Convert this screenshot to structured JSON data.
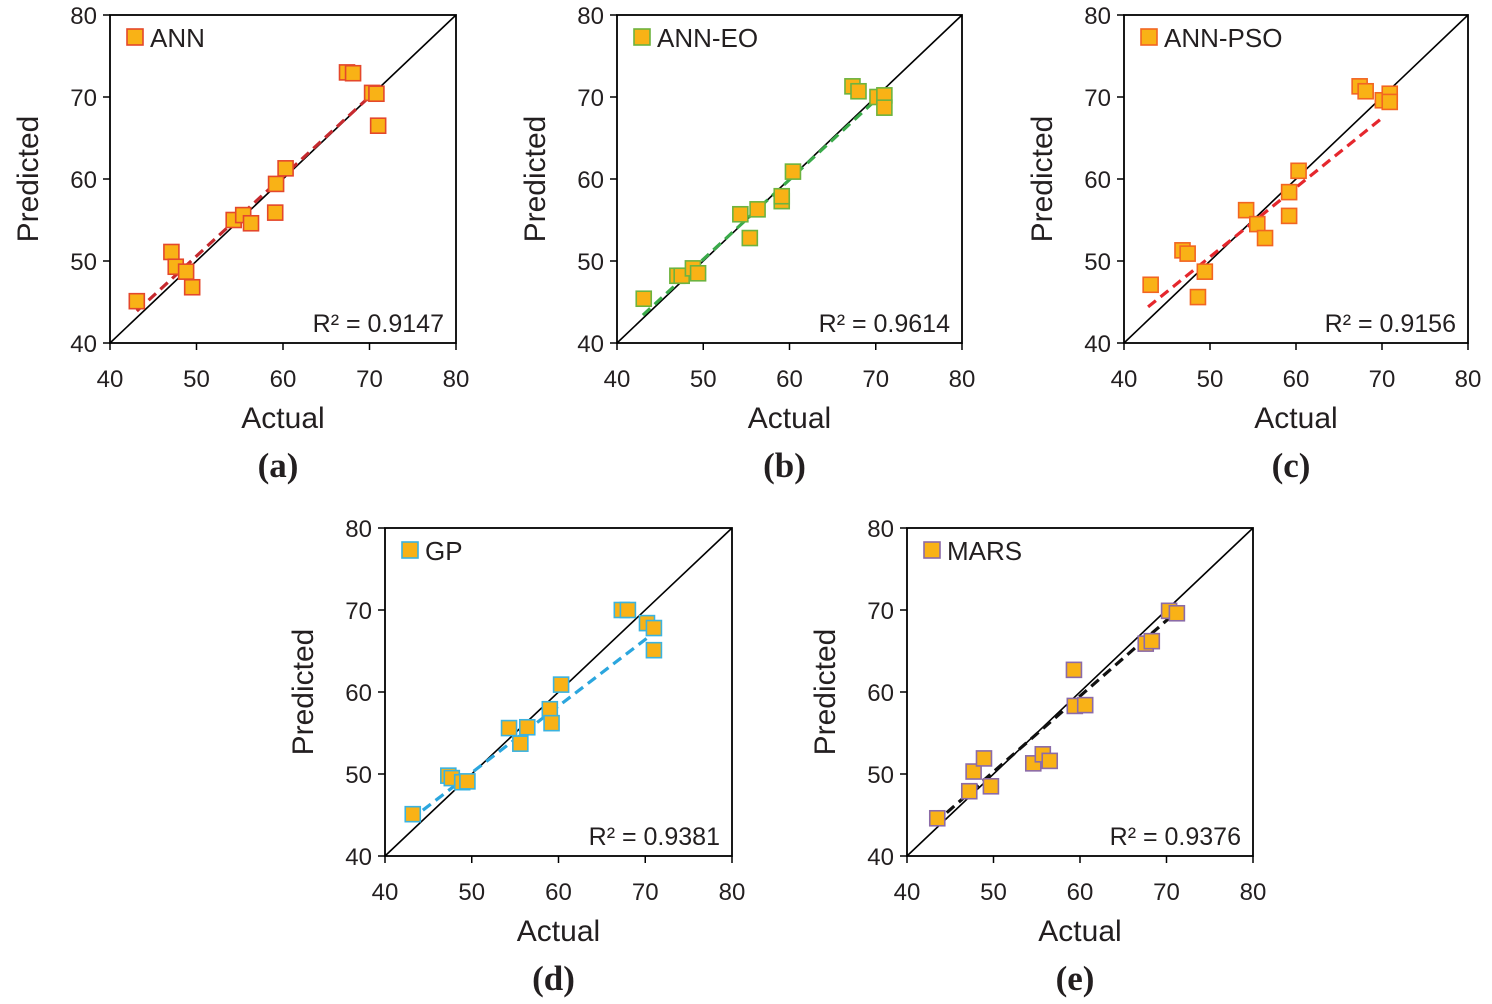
{
  "chart_data": [
    {
      "type": "scatter",
      "panel_label": "(a)",
      "legend": "ANN",
      "annotation": "R² = 0.9147",
      "xlabel": "Actual",
      "ylabel": "Predicted",
      "xlim": [
        40,
        80
      ],
      "ylim": [
        40,
        80
      ],
      "xticks": [
        40,
        50,
        60,
        70,
        80
      ],
      "yticks": [
        40,
        50,
        60,
        70,
        80
      ],
      "x": [
        43.1,
        47.1,
        47.6,
        48.8,
        49.5,
        54.3,
        55.4,
        56.3,
        59.1,
        59.2,
        60.3,
        67.4,
        68.1,
        70.3,
        70.8,
        71.0
      ],
      "y": [
        45.1,
        51.1,
        49.3,
        48.7,
        46.8,
        55.0,
        55.6,
        54.6,
        55.9,
        59.4,
        61.3,
        73.0,
        72.9,
        70.5,
        70.4,
        66.5
      ],
      "fit_line": {
        "x": [
          43.1,
          71.2
        ],
        "y": [
          43.9,
          71.2
        ]
      },
      "marker_fill": "#F9B216",
      "marker_edge": "#E4482B",
      "fit_color": "#C62A2F"
    },
    {
      "type": "scatter",
      "panel_label": "(b)",
      "legend": "ANN-EO",
      "annotation": "R² = 0.9614",
      "xlabel": "Actual",
      "ylabel": "Predicted",
      "xlim": [
        40,
        80
      ],
      "ylim": [
        40,
        80
      ],
      "xticks": [
        40,
        50,
        60,
        70,
        80
      ],
      "yticks": [
        40,
        50,
        60,
        70,
        80
      ],
      "x": [
        43.1,
        47.0,
        47.5,
        48.8,
        49.4,
        54.3,
        55.4,
        56.3,
        59.1,
        59.1,
        60.4,
        67.3,
        68.0,
        70.2,
        71.0,
        71.0
      ],
      "y": [
        45.4,
        48.2,
        48.2,
        49.1,
        48.5,
        55.7,
        52.8,
        56.3,
        57.3,
        57.9,
        60.9,
        71.3,
        70.7,
        70.0,
        70.2,
        68.7
      ],
      "fit_line": {
        "x": [
          43.0,
          71.3
        ],
        "y": [
          43.4,
          70.9
        ]
      },
      "marker_fill": "#F9B216",
      "marker_edge": "#6DB33F",
      "fit_color": "#3AAA4A"
    },
    {
      "type": "scatter",
      "panel_label": "(c)",
      "legend": "ANN-PSO",
      "annotation": "R² = 0.9156",
      "xlabel": "Actual",
      "ylabel": "Predicted",
      "xlim": [
        40,
        80
      ],
      "ylim": [
        40,
        80
      ],
      "xticks": [
        40,
        50,
        60,
        70,
        80
      ],
      "yticks": [
        40,
        50,
        60,
        70,
        80
      ],
      "x": [
        43.1,
        46.8,
        47.4,
        48.6,
        49.4,
        54.2,
        55.5,
        56.4,
        59.2,
        59.2,
        60.3,
        67.4,
        68.1,
        70.1,
        70.9,
        70.9
      ],
      "y": [
        47.1,
        51.3,
        50.9,
        45.6,
        48.7,
        56.2,
        54.5,
        52.8,
        55.5,
        58.4,
        61.0,
        71.3,
        70.7,
        69.6,
        70.4,
        69.4
      ],
      "fit_line": {
        "x": [
          42.8,
          70.2
        ],
        "y": [
          44.4,
          67.6
        ]
      },
      "marker_fill": "#F9B216",
      "marker_edge": "#F26522",
      "fit_color": "#E5272D"
    },
    {
      "type": "scatter",
      "panel_label": "(d)",
      "legend": "GP",
      "annotation": "R² = 0.9381",
      "xlabel": "Actual",
      "ylabel": "Predicted",
      "xlim": [
        40,
        80
      ],
      "ylim": [
        40,
        80
      ],
      "xticks": [
        40,
        50,
        60,
        70,
        80
      ],
      "yticks": [
        40,
        50,
        60,
        70,
        80
      ],
      "x": [
        43.2,
        47.3,
        47.7,
        48.9,
        49.5,
        54.3,
        55.6,
        56.4,
        59.0,
        59.2,
        60.3,
        67.3,
        68.0,
        70.2,
        71.0,
        71.0
      ],
      "y": [
        45.1,
        49.8,
        49.5,
        49.0,
        49.1,
        55.6,
        53.7,
        55.7,
        57.9,
        56.2,
        60.9,
        70.0,
        70.0,
        68.4,
        67.8,
        65.1
      ],
      "fit_line": {
        "x": [
          42.9,
          71.1
        ],
        "y": [
          44.4,
          67.3
        ]
      },
      "marker_fill": "#F9B216",
      "marker_edge": "#3BB3E0",
      "fit_color": "#2BA6DE"
    },
    {
      "type": "scatter",
      "panel_label": "(e)",
      "legend": "MARS",
      "annotation": "R² = 0.9376",
      "xlabel": "Actual",
      "ylabel": "Predicted",
      "xlim": [
        40,
        80
      ],
      "ylim": [
        40,
        80
      ],
      "xticks": [
        40,
        50,
        60,
        70,
        80
      ],
      "yticks": [
        40,
        50,
        60,
        70,
        80
      ],
      "x": [
        43.5,
        47.2,
        47.7,
        48.9,
        49.7,
        54.6,
        55.7,
        56.5,
        59.3,
        59.4,
        60.6,
        67.6,
        68.3,
        70.3,
        71.2
      ],
      "y": [
        44.6,
        47.9,
        50.3,
        51.9,
        48.5,
        51.3,
        52.4,
        51.6,
        62.7,
        58.3,
        58.4,
        65.9,
        66.2,
        69.9,
        69.6
      ],
      "fit_line": {
        "x": [
          43.2,
          71.6
        ],
        "y": [
          44.0,
          70.2
        ]
      },
      "marker_fill": "#F9B216",
      "marker_edge": "#8B6BA8",
      "fit_color": "#111111"
    }
  ]
}
